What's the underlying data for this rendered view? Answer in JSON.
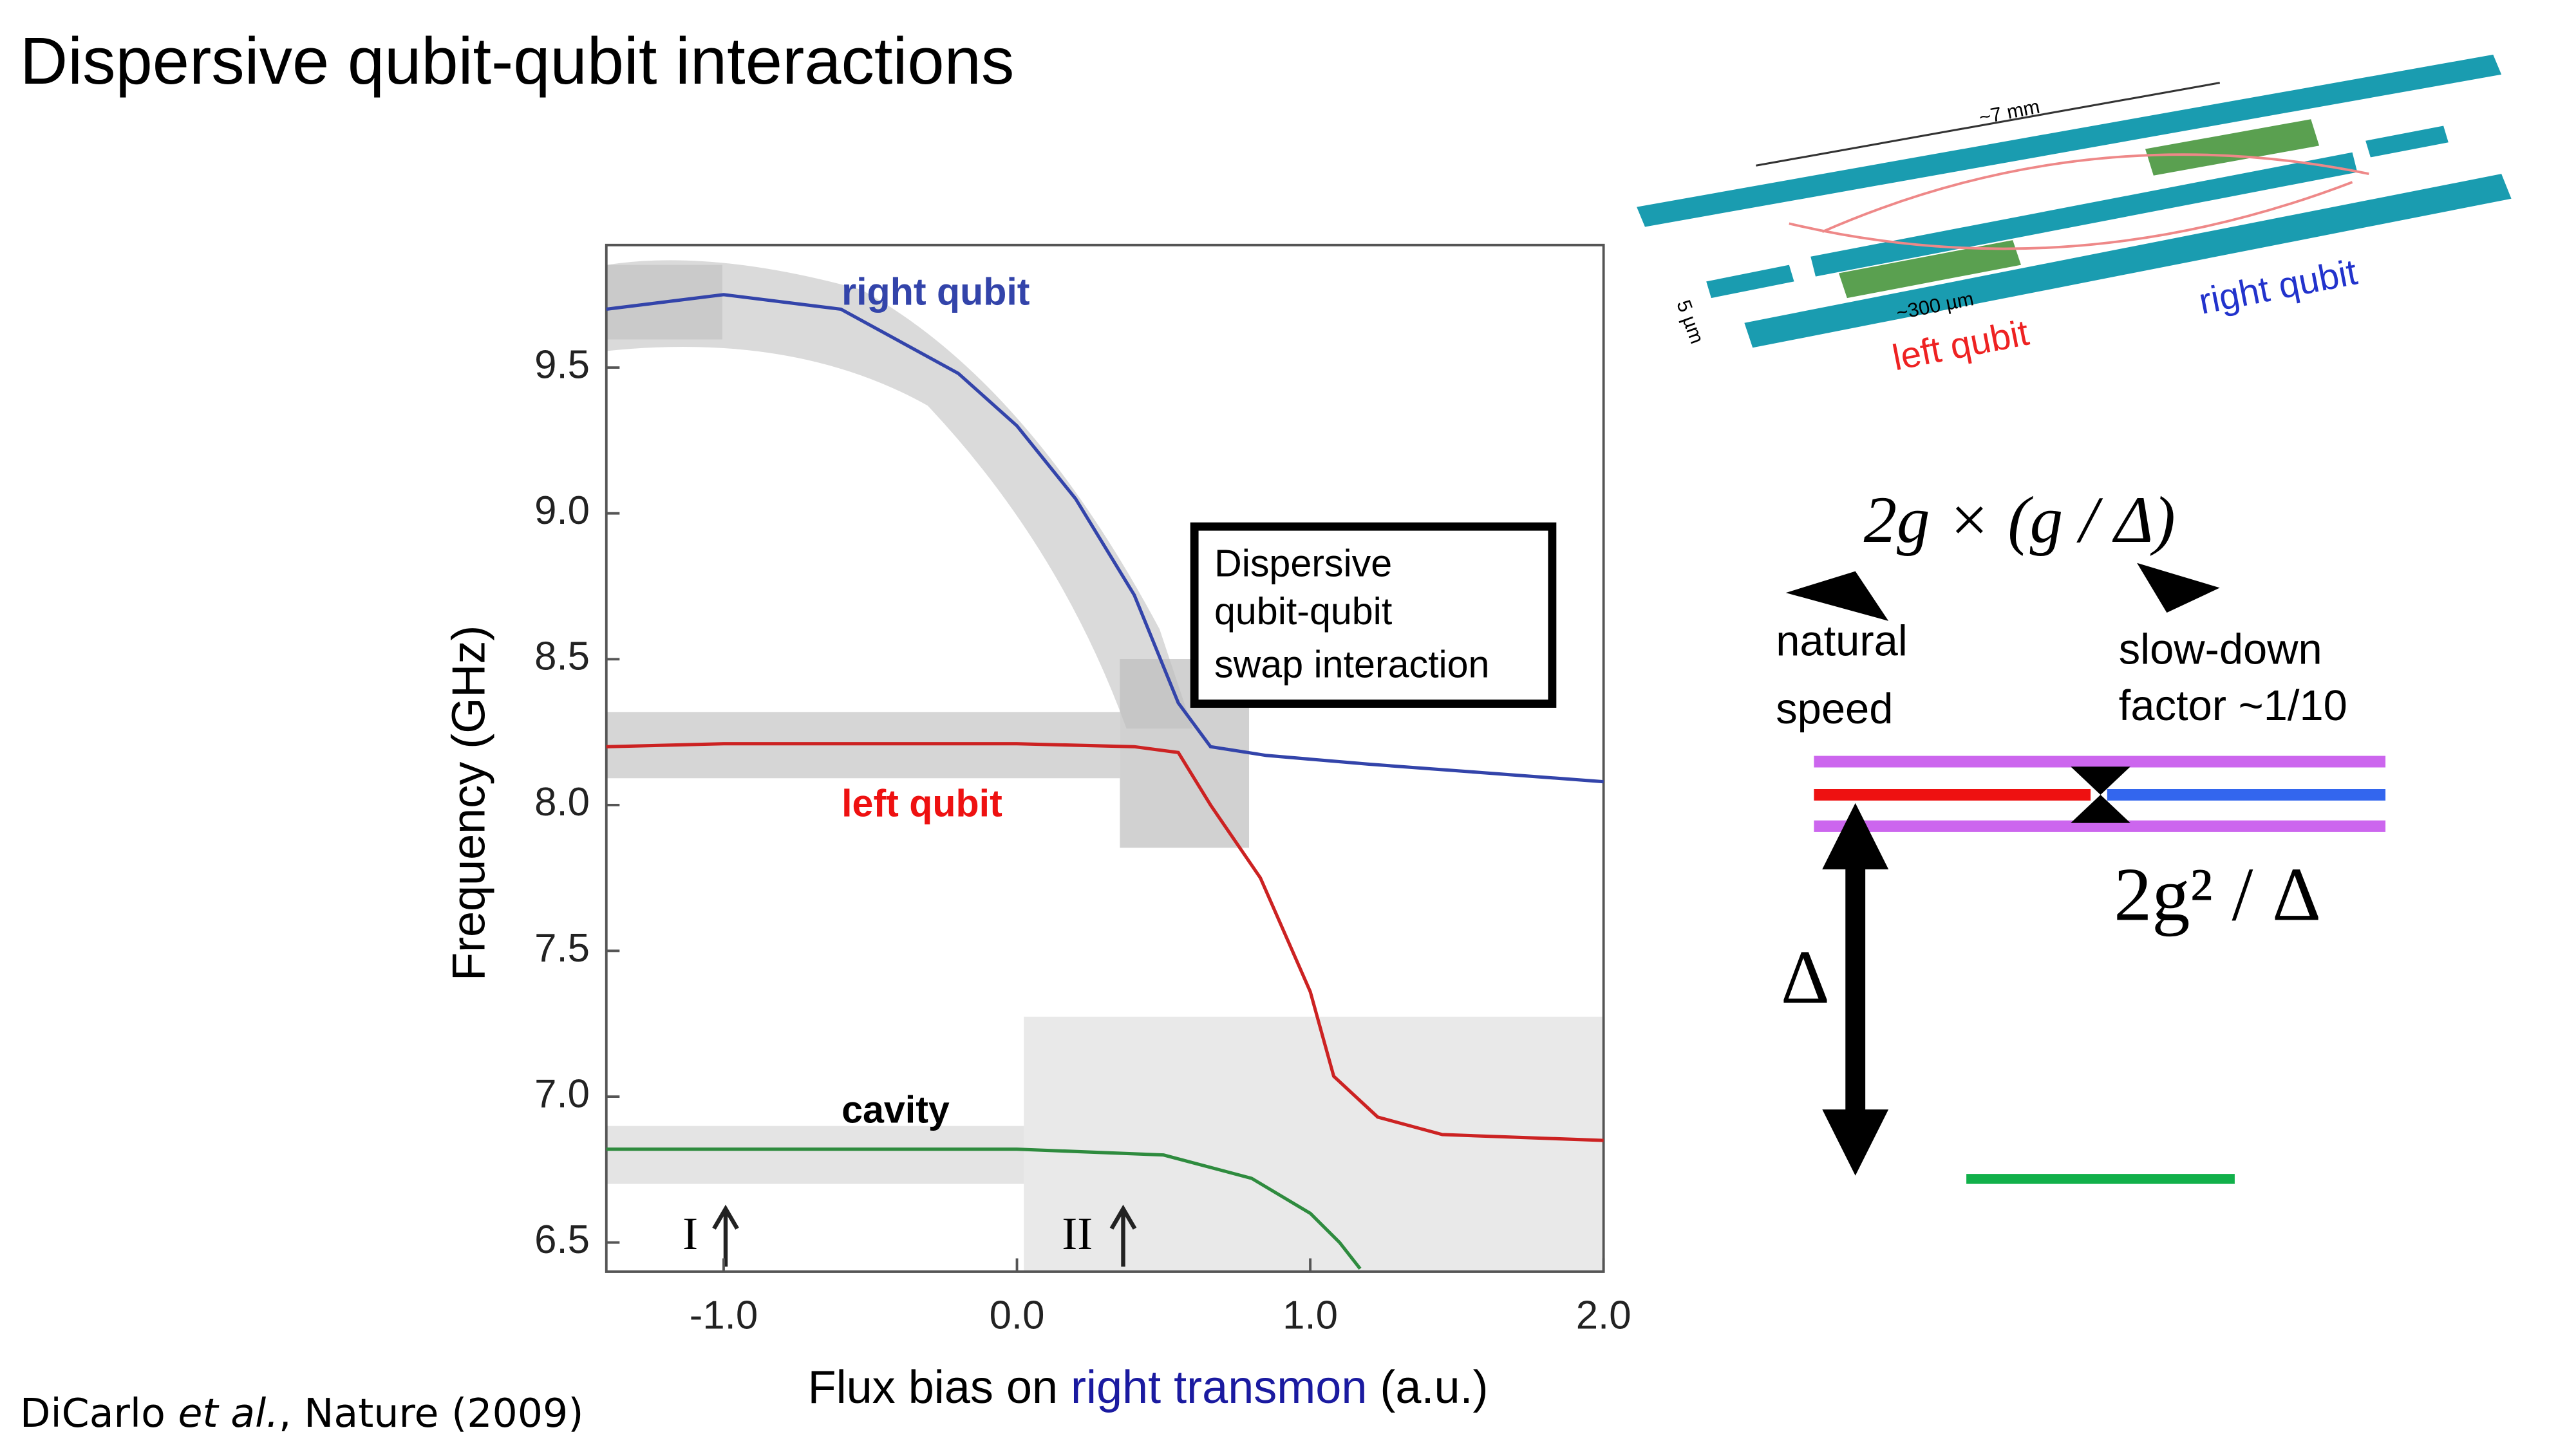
{
  "slide": {
    "title": "Dispersive qubit-qubit interactions",
    "citation": {
      "author": "DiCarlo ",
      "italic": "et al.",
      "rest": ", Nature (2009)"
    },
    "device": {
      "length": "~7 mm",
      "width": "~300 µm",
      "gap": "5 µm",
      "left": "left qubit",
      "right": "right qubit"
    },
    "diagram": {
      "formula": "2g × (g / Δ)",
      "natural": [
        "natural",
        "speed"
      ],
      "slowdown": [
        "slow-down",
        "factor ~1/10"
      ],
      "splitting": "2g² / Δ",
      "detuning": "Δ"
    }
  },
  "chart_data": {
    "type": "line",
    "ylabel": "Frequency (GHz)",
    "xlabel": {
      "before": "Flux bias on ",
      "highlight": "right transmon",
      "after": " (a.u.)"
    },
    "xlim": [
      -1.4,
      2.0
    ],
    "ylim": [
      6.4,
      9.92
    ],
    "xticks": [
      {
        "value": -1,
        "label": "-1.0"
      },
      {
        "value": 0,
        "label": "0.0"
      },
      {
        "value": 1,
        "label": "1.0"
      },
      {
        "value": 2,
        "label": "2.0"
      }
    ],
    "yticks": [
      6.5,
      {
        "value": 7,
        "label": "7.0"
      },
      7.5,
      {
        "value": 8,
        "label": "8.0"
      },
      8.5,
      {
        "value": 9,
        "label": "9.0"
      },
      9.5
    ],
    "annotations": {
      "box": [
        "Dispersive",
        "qubit-qubit",
        "swap interaction"
      ],
      "marker1": "I",
      "marker2": "II"
    },
    "series": [
      {
        "name": "right qubit",
        "color": "#3344aa",
        "x": [
          -1.4,
          -1.0,
          -0.6,
          -0.2,
          0.0,
          0.2,
          0.4,
          0.55,
          0.66,
          0.85,
          1.2,
          1.6,
          2.0
        ],
        "values": [
          9.7,
          9.75,
          9.7,
          9.48,
          9.3,
          9.05,
          8.72,
          8.35,
          8.2,
          8.17,
          8.14,
          8.11,
          8.08
        ]
      },
      {
        "name": "left qubit",
        "color": "#cc2222",
        "x": [
          -1.4,
          -1.0,
          0.0,
          0.4,
          0.55,
          0.66,
          0.83,
          1.0,
          1.08,
          1.23,
          1.45,
          2.0
        ],
        "values": [
          8.2,
          8.21,
          8.21,
          8.2,
          8.18,
          8.0,
          7.75,
          7.36,
          7.07,
          6.93,
          6.87,
          6.85
        ]
      },
      {
        "name": "cavity",
        "color": "#2e8b3e",
        "x": [
          -1.4,
          0.0,
          0.5,
          0.8,
          1.0,
          1.1,
          1.17
        ],
        "values": [
          6.82,
          6.82,
          6.8,
          6.72,
          6.6,
          6.5,
          6.41
        ]
      }
    ]
  }
}
